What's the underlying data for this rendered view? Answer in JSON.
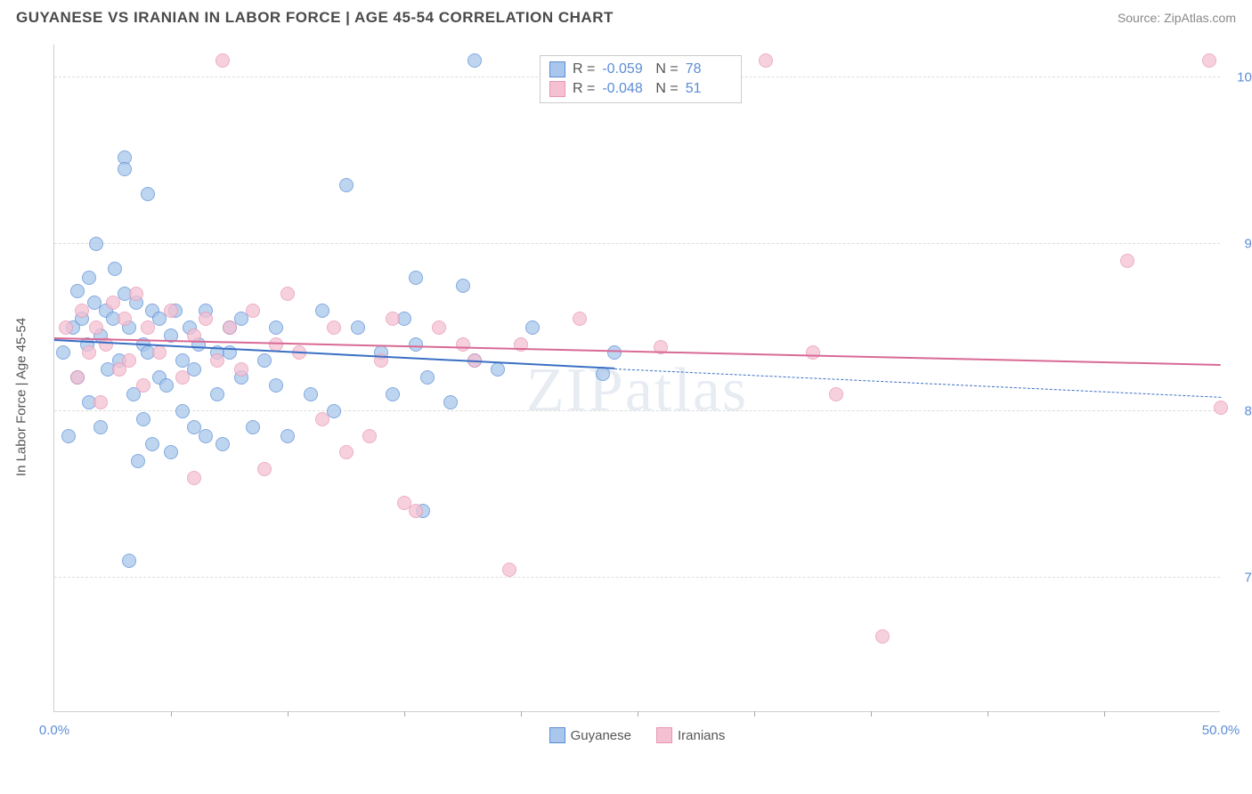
{
  "header": {
    "title": "GUYANESE VS IRANIAN IN LABOR FORCE | AGE 45-54 CORRELATION CHART",
    "source": "Source: ZipAtlas.com"
  },
  "chart": {
    "type": "scatter",
    "ylabel": "In Labor Force | Age 45-54",
    "watermark": "ZIPatlas",
    "xlim": [
      0,
      50
    ],
    "ylim": [
      62,
      102
    ],
    "background_color": "#ffffff",
    "grid_color": "#dddddd",
    "axis_color": "#d0d0d0",
    "tick_label_color": "#5b8dd6",
    "ylabel_color": "#555555",
    "yticks": [
      {
        "v": 70,
        "label": "70.0%"
      },
      {
        "v": 80,
        "label": "80.0%"
      },
      {
        "v": 90,
        "label": "90.0%"
      },
      {
        "v": 100,
        "label": "100.0%"
      }
    ],
    "xticks_minor": [
      5,
      10,
      15,
      20,
      25,
      30,
      35,
      40,
      45
    ],
    "xticks_labeled": [
      {
        "v": 0,
        "label": "0.0%"
      },
      {
        "v": 50,
        "label": "50.0%"
      }
    ],
    "marker_radius": 8,
    "marker_fill_opacity": 0.35,
    "series": [
      {
        "name": "Guyanese",
        "color_stroke": "#5b8dd6",
        "color_fill": "#a9c7ec",
        "R": "-0.059",
        "N": "78",
        "trend": {
          "x0": 0,
          "y0": 84.2,
          "x1": 24,
          "y1": 82.5,
          "color": "#3a6fc4"
        },
        "trend_ext": {
          "x0": 24,
          "y0": 82.5,
          "x1": 50,
          "y1": 80.8,
          "color": "#3a6fc4"
        },
        "points": [
          [
            0.4,
            83.5
          ],
          [
            0.6,
            78.5
          ],
          [
            0.8,
            85.0
          ],
          [
            1.0,
            87.2
          ],
          [
            1.0,
            82.0
          ],
          [
            1.2,
            85.5
          ],
          [
            1.4,
            84.0
          ],
          [
            1.5,
            88.0
          ],
          [
            1.5,
            80.5
          ],
          [
            1.7,
            86.5
          ],
          [
            1.8,
            90.0
          ],
          [
            2.0,
            84.5
          ],
          [
            2.0,
            79.0
          ],
          [
            2.2,
            86.0
          ],
          [
            2.3,
            82.5
          ],
          [
            2.5,
            85.5
          ],
          [
            2.6,
            88.5
          ],
          [
            2.8,
            83.0
          ],
          [
            3.0,
            87.0
          ],
          [
            3.0,
            95.2
          ],
          [
            3.0,
            94.5
          ],
          [
            3.2,
            85.0
          ],
          [
            3.2,
            71.0
          ],
          [
            3.4,
            81.0
          ],
          [
            3.5,
            86.5
          ],
          [
            3.6,
            77.0
          ],
          [
            3.8,
            84.0
          ],
          [
            3.8,
            79.5
          ],
          [
            4.0,
            93.0
          ],
          [
            4.0,
            83.5
          ],
          [
            4.2,
            86.0
          ],
          [
            4.2,
            78.0
          ],
          [
            4.5,
            82.0
          ],
          [
            4.5,
            85.5
          ],
          [
            4.8,
            81.5
          ],
          [
            5.0,
            84.5
          ],
          [
            5.0,
            77.5
          ],
          [
            5.2,
            86.0
          ],
          [
            5.5,
            83.0
          ],
          [
            5.5,
            80.0
          ],
          [
            5.8,
            85.0
          ],
          [
            6.0,
            82.5
          ],
          [
            6.0,
            79.0
          ],
          [
            6.2,
            84.0
          ],
          [
            6.5,
            78.5
          ],
          [
            6.5,
            86.0
          ],
          [
            7.0,
            81.0
          ],
          [
            7.0,
            83.5
          ],
          [
            7.2,
            78.0
          ],
          [
            7.5,
            85.0
          ],
          [
            7.5,
            83.5
          ],
          [
            8.0,
            82.0
          ],
          [
            8.0,
            85.5
          ],
          [
            8.5,
            79.0
          ],
          [
            9.0,
            83.0
          ],
          [
            9.5,
            85.0
          ],
          [
            9.5,
            81.5
          ],
          [
            10.0,
            78.5
          ],
          [
            11.0,
            81.0
          ],
          [
            11.5,
            86.0
          ],
          [
            12.0,
            80.0
          ],
          [
            12.5,
            93.5
          ],
          [
            13.0,
            85.0
          ],
          [
            14.0,
            83.5
          ],
          [
            14.5,
            81.0
          ],
          [
            15.0,
            85.5
          ],
          [
            15.5,
            88.0
          ],
          [
            15.5,
            84.0
          ],
          [
            15.8,
            74.0
          ],
          [
            16.0,
            82.0
          ],
          [
            17.0,
            80.5
          ],
          [
            17.5,
            87.5
          ],
          [
            18.0,
            83.0
          ],
          [
            18.0,
            101.0
          ],
          [
            19.0,
            82.5
          ],
          [
            20.5,
            85.0
          ],
          [
            23.5,
            82.2
          ],
          [
            24.0,
            83.5
          ]
        ]
      },
      {
        "name": "Iranians",
        "color_stroke": "#e895b1",
        "color_fill": "#f5c1d2",
        "R": "-0.048",
        "N": "51",
        "trend": {
          "x0": 0,
          "y0": 84.3,
          "x1": 50,
          "y1": 82.7,
          "color": "#d86a95"
        },
        "points": [
          [
            0.5,
            85.0
          ],
          [
            1.0,
            82.0
          ],
          [
            1.2,
            86.0
          ],
          [
            1.5,
            83.5
          ],
          [
            1.8,
            85.0
          ],
          [
            2.0,
            80.5
          ],
          [
            2.2,
            84.0
          ],
          [
            2.5,
            86.5
          ],
          [
            2.8,
            82.5
          ],
          [
            3.0,
            85.5
          ],
          [
            3.2,
            83.0
          ],
          [
            3.5,
            87.0
          ],
          [
            3.8,
            81.5
          ],
          [
            4.0,
            85.0
          ],
          [
            4.5,
            83.5
          ],
          [
            5.0,
            86.0
          ],
          [
            5.5,
            82.0
          ],
          [
            6.0,
            84.5
          ],
          [
            6.0,
            76.0
          ],
          [
            6.5,
            85.5
          ],
          [
            7.0,
            83.0
          ],
          [
            7.2,
            101.0
          ],
          [
            7.5,
            85.0
          ],
          [
            8.0,
            82.5
          ],
          [
            8.5,
            86.0
          ],
          [
            9.0,
            76.5
          ],
          [
            9.5,
            84.0
          ],
          [
            10.0,
            87.0
          ],
          [
            10.5,
            83.5
          ],
          [
            11.5,
            79.5
          ],
          [
            12.0,
            85.0
          ],
          [
            12.5,
            77.5
          ],
          [
            13.5,
            78.5
          ],
          [
            14.0,
            83.0
          ],
          [
            14.5,
            85.5
          ],
          [
            15.0,
            74.5
          ],
          [
            15.5,
            74.0
          ],
          [
            16.5,
            85.0
          ],
          [
            17.5,
            84.0
          ],
          [
            18.0,
            83.0
          ],
          [
            19.5,
            70.5
          ],
          [
            20.0,
            84.0
          ],
          [
            22.5,
            85.5
          ],
          [
            26.0,
            83.8
          ],
          [
            30.5,
            101.0
          ],
          [
            32.5,
            83.5
          ],
          [
            33.5,
            81.0
          ],
          [
            35.5,
            66.5
          ],
          [
            46.0,
            89.0
          ],
          [
            49.5,
            101.0
          ],
          [
            50.0,
            80.2
          ]
        ]
      }
    ],
    "bottom_legend": [
      {
        "swatch_fill": "#a9c7ec",
        "swatch_stroke": "#5b8dd6",
        "label": "Guyanese"
      },
      {
        "swatch_fill": "#f5c1d2",
        "swatch_stroke": "#e895b1",
        "label": "Iranians"
      }
    ]
  }
}
